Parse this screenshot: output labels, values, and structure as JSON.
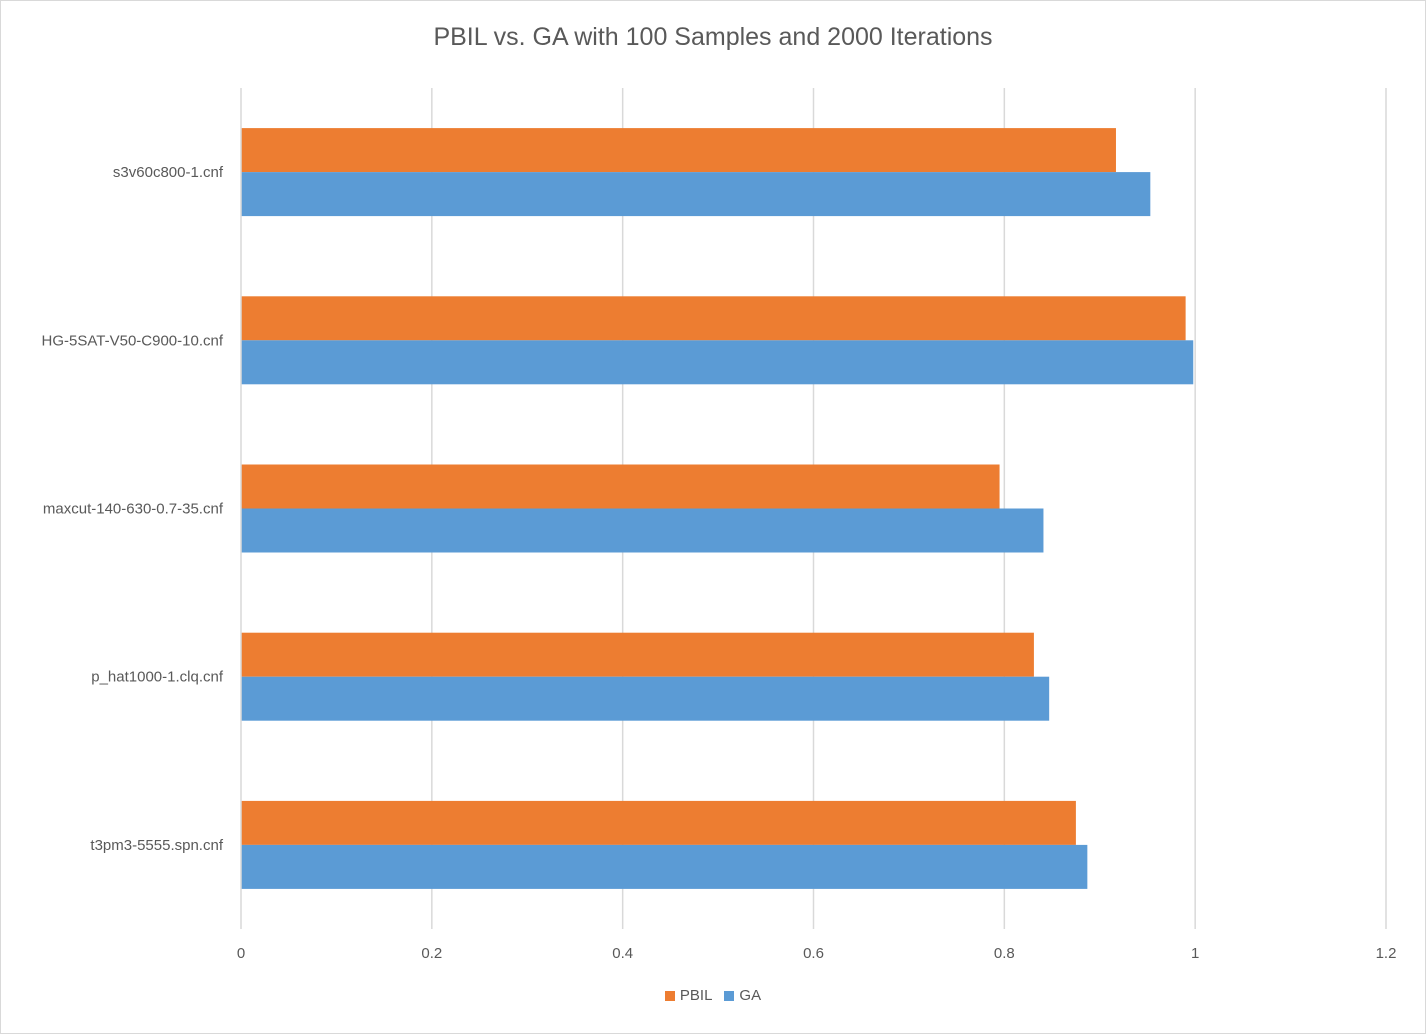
{
  "chart_data": {
    "type": "bar",
    "orientation": "horizontal",
    "title": "PBIL vs. GA with 100 Samples and 2000 Iterations",
    "xlabel": "",
    "ylabel": "",
    "categories": [
      "s3v60c800-1.cnf",
      "HG-5SAT-V50-C900-10.cnf",
      "maxcut-140-630-0.7-35.cnf",
      "p_hat1000-1.clq.cnf",
      "t3pm3-5555.spn.cnf"
    ],
    "series": [
      {
        "name": "PBIL",
        "color": "#ed7d31",
        "values": [
          0.917,
          0.99,
          0.795,
          0.831,
          0.875
        ]
      },
      {
        "name": "GA",
        "color": "#5b9bd5",
        "values": [
          0.953,
          0.998,
          0.841,
          0.847,
          0.887
        ]
      }
    ],
    "xlim": [
      0,
      1.2
    ],
    "xticks": [
      "0",
      "0.2",
      "0.4",
      "0.6",
      "0.8",
      "1",
      "1.2"
    ],
    "grid": "vertical",
    "legend": "bottom"
  }
}
